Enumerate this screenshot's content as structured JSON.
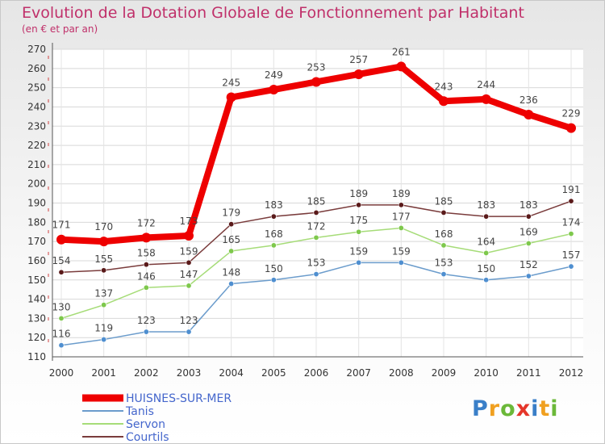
{
  "brand": {
    "name": "Proxiti",
    "letters": [
      {
        "ch": "P",
        "color": "#3a7fc8"
      },
      {
        "ch": "r",
        "color": "#f0a020"
      },
      {
        "ch": "o",
        "color": "#6bb839"
      },
      {
        "ch": "x",
        "color": "#e5362a"
      },
      {
        "ch": "i",
        "color": "#3a7fc8"
      },
      {
        "ch": "t",
        "color": "#f0a020"
      },
      {
        "ch": "i",
        "color": "#6bb839"
      }
    ]
  },
  "chart_data": {
    "type": "line",
    "title": "Evolution de la Dotation Globale de Fonctionnement par Habitant",
    "subtitle": "(en € et par an)",
    "xlabel": "",
    "ylabel": "",
    "x": [
      "2000",
      "2001",
      "2002",
      "2003",
      "2004",
      "2005",
      "2006",
      "2007",
      "2008",
      "2009",
      "2010",
      "2011",
      "2012"
    ],
    "ylim": [
      110,
      270
    ],
    "yticks": [
      110,
      120,
      130,
      140,
      150,
      160,
      170,
      180,
      190,
      200,
      210,
      220,
      230,
      240,
      250,
      260,
      270
    ],
    "grid": true,
    "legend_position": "bottom-left",
    "series": [
      {
        "name": "HUISNES-SUR-MER",
        "color": "#ee0000",
        "line_width": 8,
        "marker_radius": 6,
        "values": [
          171,
          170,
          172,
          173,
          245,
          249,
          253,
          257,
          261,
          243,
          244,
          236,
          229
        ]
      },
      {
        "name": "Tanis",
        "color": "#6b9ccc",
        "marker_color": "#4f8fd0",
        "line_width": 1.5,
        "marker_radius": 3.2,
        "values": [
          116,
          119,
          123,
          123,
          148,
          150,
          153,
          159,
          159,
          153,
          150,
          152,
          157
        ]
      },
      {
        "name": "Servon",
        "color": "#a6dc78",
        "marker_color": "#7ec84c",
        "line_width": 1.5,
        "marker_radius": 3.2,
        "values": [
          130,
          137,
          146,
          147,
          165,
          168,
          172,
          175,
          177,
          168,
          164,
          169,
          174
        ]
      },
      {
        "name": "Courtils",
        "color": "#7a3c3c",
        "marker_color": "#5a1a1a",
        "line_width": 1.5,
        "marker_radius": 3.2,
        "values": [
          154,
          155,
          158,
          159,
          179,
          183,
          185,
          189,
          189,
          185,
          183,
          183,
          191
        ]
      }
    ]
  }
}
